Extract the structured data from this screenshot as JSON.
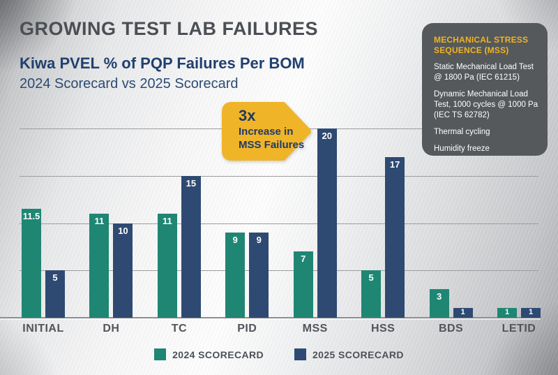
{
  "header": {
    "title": "GROWING TEST LAB FAILURES",
    "subtitle": "Kiwa PVEL % of PQP Failures Per BOM",
    "comparison": "2024 Scorecard vs 2025 Scorecard"
  },
  "info_box": {
    "heading": "MECHANICAL STRESS SEQUENCE (MSS)",
    "items": [
      "Static Mechanical Load Test @ 1800 Pa (IEC 61215)",
      "Dynamic Mechanical Load Test, 1000 cycles @ 1000 Pa (IEC TS 62782)",
      "Thermal cycling",
      "Humidity freeze"
    ]
  },
  "callout": {
    "headline": "3x",
    "line1": "Increase in",
    "line2": "MSS Failures"
  },
  "legend": [
    {
      "label": "2024 SCORECARD",
      "color": "#1f8673"
    },
    {
      "label": "2025 SCORECARD",
      "color": "#2e4a72"
    }
  ],
  "chart_data": {
    "type": "bar",
    "title": "Kiwa PVEL % of PQP Failures Per BOM",
    "subtitle": "2024 Scorecard vs 2025 Scorecard",
    "categories": [
      "INITIAL",
      "DH",
      "TC",
      "PID",
      "MSS",
      "HSS",
      "BDS",
      "LETID"
    ],
    "series": [
      {
        "name": "2024 SCORECARD",
        "color": "#1f8673",
        "values": [
          11.5,
          11,
          11,
          9,
          7,
          5,
          3,
          1
        ]
      },
      {
        "name": "2025 SCORECARD",
        "color": "#2e4a72",
        "values": [
          5,
          10,
          15,
          9,
          20,
          17,
          1,
          1
        ]
      }
    ],
    "xlabel": "",
    "ylabel": "% of PQP Failures Per BOM",
    "ylim": [
      0,
      21
    ],
    "gridline_values": [
      5,
      10,
      15,
      20
    ],
    "grid": true,
    "y_axis_labels_shown": false,
    "value_labels": true,
    "legend_position": "bottom",
    "annotation": "3x Increase in MSS Failures (points at MSS 2025 bar)"
  },
  "colors": {
    "teal": "#1f8673",
    "navy": "#2e4a72",
    "gold": "#f0b428",
    "title_gray": "#4b4f54",
    "navy_text": "#21406e",
    "box_bg": "#55595c",
    "box_heading": "#f0b323",
    "grid": "#9b9da0"
  }
}
